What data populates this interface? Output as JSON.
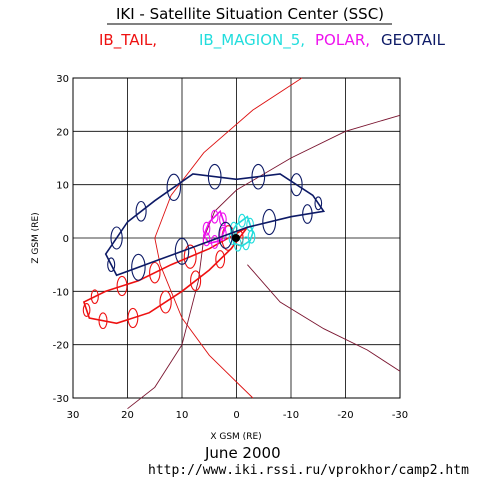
{
  "header": {
    "title": "IKI - Satellite Situation Center (SSC)",
    "legend": [
      {
        "label": "IB_TAIL,",
        "color": "#ee1111"
      },
      {
        "label": "IB_MAGION_5,",
        "color": "#22dddd"
      },
      {
        "label": "POLAR,",
        "color": "#ee11ee"
      },
      {
        "label": "GEOTAIL",
        "color": "#0d1a66"
      }
    ]
  },
  "footer": {
    "date": "June   2000",
    "url": "http://www.iki.rssi.ru/vprokhor/camp2.htm"
  },
  "chart_data": {
    "type": "line",
    "xlabel": "X GSM (RE)",
    "ylabel": "Z GSM (RE)",
    "xlim": [
      30,
      -30
    ],
    "ylim": [
      -30,
      30
    ],
    "x_ticks": [
      "30",
      "20",
      "10",
      "0",
      "-10",
      "-20",
      "-30"
    ],
    "y_ticks": [
      "30",
      "20",
      "10",
      "0",
      "-10",
      "-20",
      "-30"
    ],
    "grid": true,
    "series": [
      {
        "name": "IB_TAIL",
        "color": "#ee1111",
        "points": [
          [
            -2,
            2
          ],
          [
            5,
            -2
          ],
          [
            12,
            -5
          ],
          [
            18,
            -8
          ],
          [
            24,
            -10
          ],
          [
            28,
            -12
          ],
          [
            27,
            -15
          ],
          [
            22,
            -16
          ],
          [
            16,
            -14
          ],
          [
            10,
            -10
          ],
          [
            5,
            -6
          ],
          [
            1,
            -2
          ],
          [
            -2,
            2
          ]
        ]
      },
      {
        "name": "IB_MAGION_5",
        "color": "#22dddd",
        "points": [
          [
            -2,
            4
          ],
          [
            0,
            2.5
          ],
          [
            1,
            1
          ],
          [
            0.5,
            -1
          ],
          [
            -1,
            -1.5
          ],
          [
            -2.5,
            -0.5
          ],
          [
            -3,
            1
          ],
          [
            -2,
            4
          ]
        ]
      },
      {
        "name": "POLAR",
        "color": "#ee11ee",
        "points": [
          [
            3,
            5
          ],
          [
            5,
            3
          ],
          [
            6,
            0.5
          ],
          [
            5,
            -1
          ],
          [
            3,
            -0.5
          ],
          [
            2,
            2
          ],
          [
            3,
            5
          ]
        ]
      },
      {
        "name": "GEOTAIL",
        "color": "#0d1a66",
        "points": [
          [
            -16,
            5
          ],
          [
            -14,
            8
          ],
          [
            -8,
            12
          ],
          [
            0,
            11
          ],
          [
            8,
            12
          ],
          [
            15,
            7
          ],
          [
            20,
            3
          ],
          [
            24,
            -3
          ],
          [
            22,
            -7
          ],
          [
            14,
            -4
          ],
          [
            6,
            -1
          ],
          [
            -2,
            2
          ],
          [
            -10,
            4
          ],
          [
            -16,
            5
          ]
        ]
      }
    ]
  }
}
